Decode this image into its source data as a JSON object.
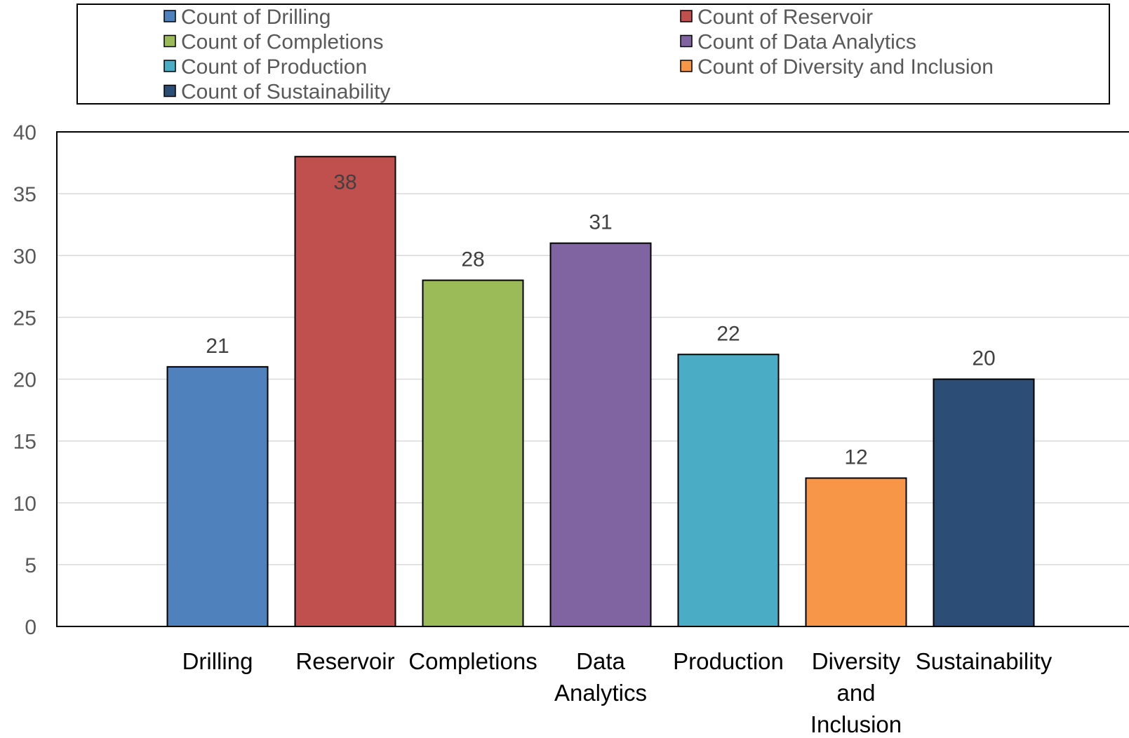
{
  "chart_data": {
    "type": "bar",
    "title": "",
    "xlabel": "",
    "ylabel": "",
    "ylim": [
      0,
      40
    ],
    "yticks": [
      0,
      5,
      10,
      15,
      20,
      25,
      30,
      35,
      40
    ],
    "grid": true,
    "legend_position": "top",
    "categories": [
      [
        "Drilling"
      ],
      [
        "Reservoir"
      ],
      [
        "Completions"
      ],
      [
        "Data",
        "Analytics"
      ],
      [
        "Production"
      ],
      [
        "Diversity",
        "and",
        "Inclusion"
      ],
      [
        "Sustainability"
      ]
    ],
    "series": [
      {
        "name": "Count of Drilling",
        "category": 0,
        "value": 21,
        "color": "#4F81BD"
      },
      {
        "name": "Count of Reservoir",
        "category": 1,
        "value": 38,
        "color": "#C0504D"
      },
      {
        "name": "Count of Completions",
        "category": 2,
        "value": 28,
        "color": "#9BBB59"
      },
      {
        "name": "Count of Data Analytics",
        "category": 3,
        "value": 31,
        "color": "#8064A2"
      },
      {
        "name": "Count of Production",
        "category": 4,
        "value": 22,
        "color": "#4BACC6"
      },
      {
        "name": "Count of Diversity and Inclusion",
        "category": 5,
        "value": 12,
        "color": "#F79646"
      },
      {
        "name": "Count of Sustainability",
        "category": 6,
        "value": 20,
        "color": "#2C4D75"
      }
    ],
    "data_labels": [
      "21",
      "38",
      "28",
      "31",
      "22",
      "12",
      "20"
    ]
  }
}
